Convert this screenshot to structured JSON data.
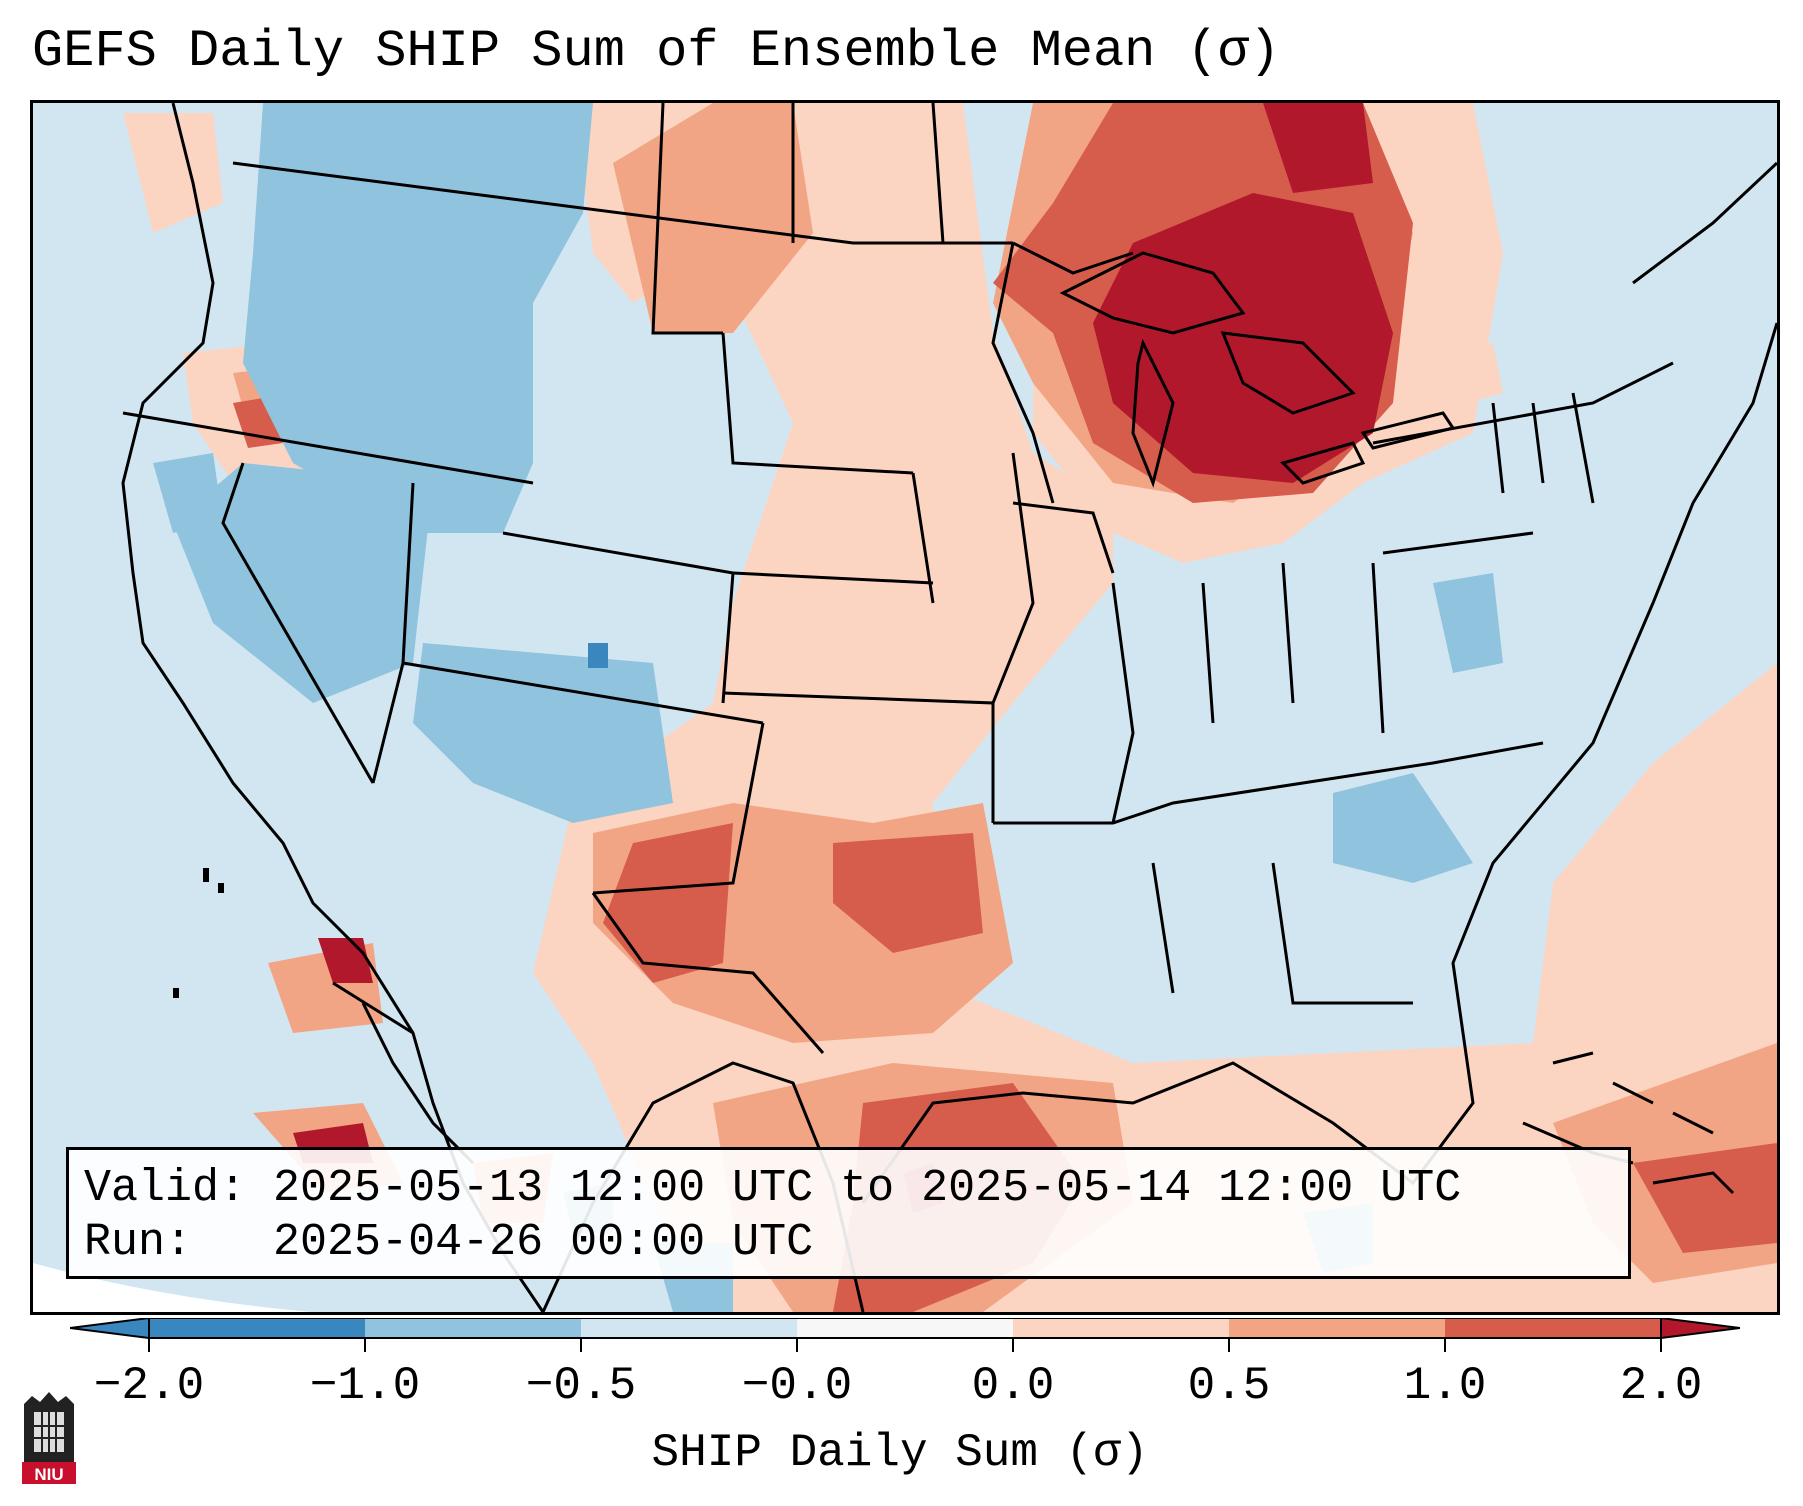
{
  "title": "GEFS Daily SHIP Sum of Ensemble Mean (σ)",
  "info": {
    "valid_label": "Valid:",
    "valid_value": "2025-05-13 12:00 UTC to 2025-05-14 12:00 UTC",
    "run_label": "Run:",
    "run_value": "2025-04-26 00:00 UTC"
  },
  "colorbar": {
    "label": "SHIP Daily Sum (σ)",
    "ticks": [
      "−2.0",
      "−1.0",
      "−0.5",
      "−0.0",
      "0.0",
      "0.5",
      "1.0",
      "2.0"
    ],
    "colors": [
      "#3a87c0",
      "#8fc3de",
      "#d2e6f2",
      "#f7f7f7",
      "#fbd5c2",
      "#f2a584",
      "#d65c4c",
      "#b2182b"
    ]
  },
  "logo": {
    "text": "NIU"
  },
  "map": {
    "fields": [
      {
        "name": "northern-plains-canada-anomaly",
        "level": 0.3
      },
      {
        "name": "great-lakes-strong-anomaly",
        "level": 2.0
      },
      {
        "name": "northwest-interior-negative",
        "level": -0.7
      },
      {
        "name": "southern-plains-positive",
        "level": 0.8
      },
      {
        "name": "gulf-of-mexico-positive",
        "level": 0.6
      },
      {
        "name": "southeast-negative",
        "level": -0.6
      },
      {
        "name": "atlantic-positive",
        "level": 0.4
      },
      {
        "name": "caribbean-positive",
        "level": 1.0
      }
    ]
  }
}
